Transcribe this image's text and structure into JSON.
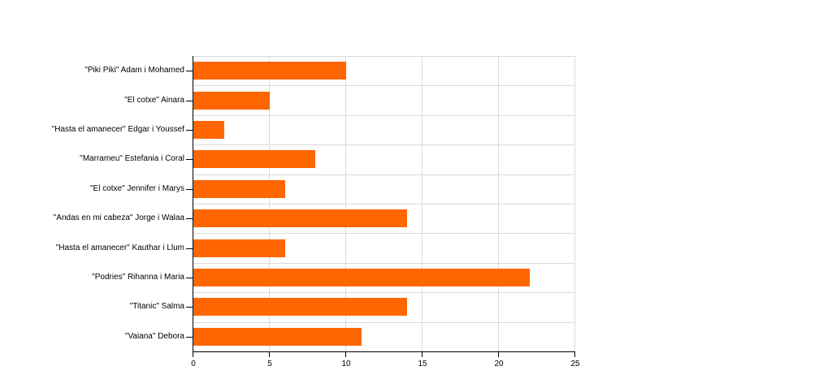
{
  "chart_data": {
    "type": "bar",
    "orientation": "horizontal",
    "title": "",
    "xlabel": "",
    "ylabel": "",
    "categories": [
      "\"Piki Piki\" Adam i Mohamed",
      "\"El cotxe\" Ainara",
      "\"Hasta el amanecer\" Edgar i Youssef",
      "\"Marrameu\" Estefania i Coral",
      "\"El cotxe\" Jennifer i Marys",
      "\"Andas en mi cabeza\" Jorge i Walaa",
      "\"Hasta el amanecer\" Kauthar i Llum",
      "\"Podries\" Rihanna i Maria",
      "\"Titanic\" Salma",
      "\"Vaiana\" Debora"
    ],
    "values": [
      10,
      5,
      2,
      8,
      6,
      14,
      6,
      22,
      14,
      11
    ],
    "xlim": [
      0,
      25
    ],
    "xticks": [
      0,
      5,
      10,
      15,
      20,
      25
    ],
    "grid": true,
    "legend": "none",
    "colors": {
      "bar_fill": "#ff6600",
      "gridline": "#d9d9d9",
      "axis": "#000000",
      "text": "#000000",
      "background": "#ffffff"
    }
  }
}
